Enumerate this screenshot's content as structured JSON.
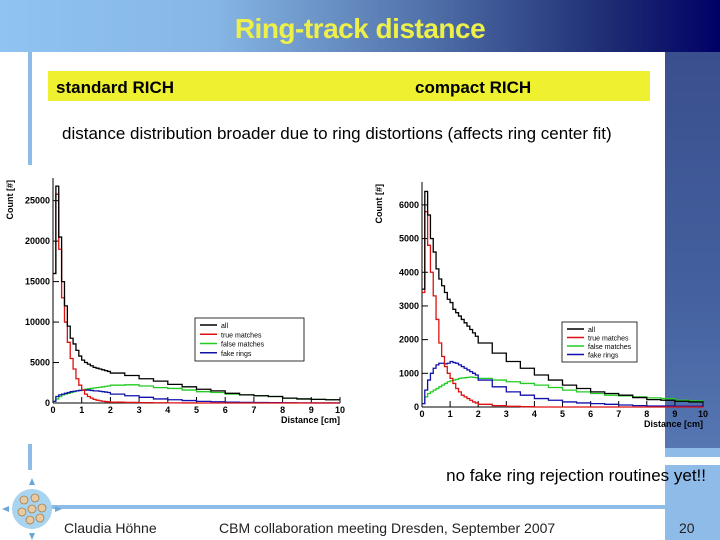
{
  "slide": {
    "title": "Ring-track distance",
    "label_left": "standard RICH",
    "label_right": "compact RICH",
    "description": "distance distribution broader due to ring distortions (affects ring center fit)",
    "note": "no fake ring rejection routines yet!!",
    "footer_author": "Claudia Höhne",
    "footer_event": "CBM collaboration meeting Dresden, September 2007",
    "page_number": "20"
  },
  "colors": {
    "title": "#eef04a",
    "highlight": "#eef030",
    "accent": "#8ebbe8",
    "all": "#000000",
    "true": "#dd1111",
    "false": "#22cc22",
    "fake": "#1111aa"
  },
  "chart_data": [
    {
      "type": "bar",
      "style": "step-histogram",
      "xlabel": "Distance [cm]",
      "ylabel": "Count [#]",
      "xlim": [
        0,
        10
      ],
      "ylim": [
        0,
        27800
      ],
      "xticks": [
        0,
        1,
        2,
        3,
        4,
        5,
        6,
        7,
        8,
        9,
        10
      ],
      "yticks": [
        0,
        5000,
        10000,
        15000,
        20000,
        25000
      ],
      "legend": "center-right",
      "bin_edges": [
        0,
        0.1,
        0.2,
        0.3,
        0.4,
        0.5,
        0.6,
        0.7,
        0.8,
        0.9,
        1.0,
        1.1,
        1.2,
        1.3,
        1.4,
        1.5,
        1.6,
        1.7,
        1.8,
        1.9,
        2.0,
        2.5,
        3,
        3.5,
        4,
        4.5,
        5,
        5.5,
        6,
        6.5,
        7,
        7.5,
        8,
        8.5,
        9,
        9.5,
        10
      ],
      "series": [
        {
          "name": "all",
          "color": "#000000",
          "values": [
            16000,
            26800,
            20500,
            15000,
            12000,
            9500,
            8000,
            7300,
            6500,
            5800,
            5300,
            5000,
            4800,
            4600,
            4400,
            4300,
            4200,
            4100,
            4000,
            3900,
            3700,
            3400,
            3000,
            2700,
            2300,
            2000,
            1700,
            1500,
            1200,
            1000,
            900,
            800,
            600,
            500,
            450,
            400
          ]
        },
        {
          "name": "true matches",
          "color": "#dd1111",
          "values": [
            16000,
            25800,
            19000,
            13000,
            10000,
            7500,
            5500,
            4200,
            3000,
            2200,
            1600,
            1100,
            800,
            600,
            450,
            350,
            280,
            220,
            180,
            150,
            100,
            70,
            50,
            30,
            20,
            10,
            0,
            0,
            0,
            0,
            0,
            0,
            0,
            0,
            0,
            0
          ]
        },
        {
          "name": "false matches",
          "color": "#22cc22",
          "values": [
            200,
            500,
            800,
            1000,
            1100,
            1200,
            1300,
            1400,
            1500,
            1550,
            1600,
            1700,
            1750,
            1800,
            1850,
            1900,
            1950,
            2000,
            2050,
            2100,
            2200,
            2250,
            2100,
            1900,
            1800,
            1600,
            1400,
            1300,
            1100,
            1000,
            900,
            800,
            600,
            500,
            450,
            400
          ]
        },
        {
          "name": "fake rings",
          "color": "#1111aa",
          "values": [
            200,
            800,
            1000,
            1100,
            1200,
            1300,
            1400,
            1450,
            1500,
            1550,
            1600,
            1600,
            1600,
            1550,
            1500,
            1500,
            1450,
            1400,
            1350,
            1300,
            1100,
            900,
            700,
            500,
            400,
            300,
            200,
            150,
            100,
            80,
            60,
            40,
            30,
            20,
            10,
            10
          ]
        }
      ]
    },
    {
      "type": "bar",
      "style": "step-histogram",
      "xlabel": "Distance [cm]",
      "ylabel": "Count [#]",
      "xlim": [
        0,
        10
      ],
      "ylim": [
        0,
        6680
      ],
      "xticks": [
        0,
        1,
        2,
        3,
        4,
        5,
        6,
        7,
        8,
        9,
        10
      ],
      "yticks": [
        0,
        1000,
        2000,
        3000,
        4000,
        5000,
        6000
      ],
      "legend": "center-right",
      "bin_edges": [
        0,
        0.1,
        0.2,
        0.3,
        0.4,
        0.5,
        0.6,
        0.7,
        0.8,
        0.9,
        1.0,
        1.1,
        1.2,
        1.3,
        1.4,
        1.5,
        1.6,
        1.7,
        1.8,
        1.9,
        2.0,
        2.5,
        3,
        3.5,
        4,
        4.5,
        5,
        5.5,
        6,
        6.5,
        7,
        7.5,
        8,
        8.5,
        9,
        9.5,
        10
      ],
      "series": [
        {
          "name": "all",
          "color": "#000000",
          "values": [
            3500,
            6400,
            5700,
            5000,
            4600,
            4100,
            3800,
            3600,
            3400,
            3200,
            3100,
            2900,
            2800,
            2700,
            2600,
            2500,
            2400,
            2300,
            2200,
            2100,
            1900,
            1600,
            1350,
            1150,
            950,
            800,
            650,
            550,
            450,
            400,
            350,
            280,
            220,
            200,
            170,
            150
          ]
        },
        {
          "name": "true matches",
          "color": "#dd1111",
          "values": [
            3400,
            5800,
            4800,
            4000,
            3300,
            2600,
            1900,
            1500,
            1200,
            1000,
            850,
            700,
            550,
            450,
            350,
            300,
            250,
            200,
            150,
            120,
            80,
            40,
            20,
            10,
            0,
            0,
            0,
            0,
            0,
            0,
            0,
            0,
            0,
            0,
            0,
            0
          ]
        },
        {
          "name": "false matches",
          "color": "#22cc22",
          "values": [
            100,
            300,
            400,
            450,
            500,
            550,
            600,
            650,
            700,
            750,
            780,
            800,
            820,
            850,
            860,
            870,
            880,
            890,
            880,
            870,
            850,
            800,
            750,
            700,
            650,
            580,
            500,
            450,
            400,
            350,
            330,
            300,
            270,
            250,
            200,
            180
          ]
        },
        {
          "name": "fake rings",
          "color": "#1111aa",
          "values": [
            100,
            500,
            800,
            1000,
            1150,
            1250,
            1300,
            1300,
            1280,
            1300,
            1350,
            1320,
            1300,
            1250,
            1200,
            1150,
            1100,
            1050,
            1000,
            950,
            800,
            600,
            450,
            350,
            250,
            200,
            150,
            120,
            100,
            80,
            60,
            40,
            30,
            30,
            20,
            20
          ]
        }
      ]
    }
  ]
}
